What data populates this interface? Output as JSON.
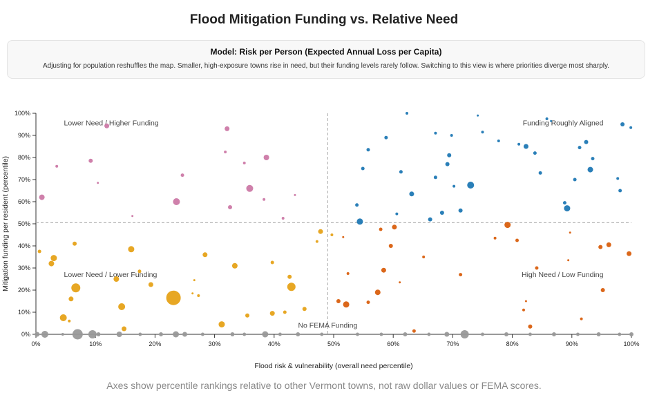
{
  "header": {
    "title": "Flood Mitigation Funding vs. Relative Need"
  },
  "model": {
    "title": "Model: Risk per Person (Expected Annual Loss per Capita)",
    "description": "Adjusting for population reshuffles the map. Smaller, high-exposure towns rise in need, but their funding levels rarely follow. Switching to this view is where priorities diverge most sharply."
  },
  "footnote": "Axes show percentile rankings relative to other Vermont towns, not raw dollar values or FEMA scores.",
  "chart_data": {
    "type": "scatter",
    "xlabel": "Flood risk & vulnerability (overall need percentile)",
    "ylabel": "Mitigation funding per resident (percentile)",
    "xlim": [
      0,
      100
    ],
    "ylim": [
      0,
      100
    ],
    "x_ticks": [
      "0%",
      "10%",
      "20%",
      "30%",
      "40%",
      "50%",
      "60%",
      "70%",
      "80%",
      "90%",
      "100%"
    ],
    "y_ticks": [
      "0%",
      "10%",
      "20%",
      "30%",
      "40%",
      "50%",
      "60%",
      "70%",
      "80%",
      "90%",
      "100%"
    ],
    "grid": false,
    "reference_lines": {
      "x": 49,
      "y": 50.5
    },
    "quadrant_labels": {
      "top_left": "Lower Need / Higher Funding",
      "top_right": "Funding Roughly Aligned",
      "bottom_left": "Lower Need / Lower Funding",
      "bottom_right": "High Need / Low Funding",
      "baseline": "No FEMA Funding"
    },
    "colors": {
      "top_left": "#cc79a7",
      "top_right": "#1f78b4",
      "bottom_left": "#e6a218",
      "bottom_right": "#d95f0e",
      "no_funding": "#999999",
      "reference": "#aaaaaa"
    },
    "series": [
      {
        "key": "top_left",
        "points": [
          {
            "x": 1,
            "y": 62,
            "s": 4
          },
          {
            "x": 3.5,
            "y": 76,
            "s": 2
          },
          {
            "x": 9.2,
            "y": 78.5,
            "s": 3
          },
          {
            "x": 10.4,
            "y": 68.5,
            "s": 1.5
          },
          {
            "x": 11.9,
            "y": 94.3,
            "s": 3.5
          },
          {
            "x": 16.2,
            "y": 53.5,
            "s": 1.5
          },
          {
            "x": 23.6,
            "y": 60,
            "s": 5
          },
          {
            "x": 24.6,
            "y": 72,
            "s": 2.5
          },
          {
            "x": 32.1,
            "y": 93,
            "s": 3.5
          },
          {
            "x": 31.8,
            "y": 82.5,
            "s": 2
          },
          {
            "x": 32.6,
            "y": 57.5,
            "s": 3
          },
          {
            "x": 35,
            "y": 77.5,
            "s": 2
          },
          {
            "x": 35.9,
            "y": 66,
            "s": 5
          },
          {
            "x": 38.7,
            "y": 80,
            "s": 4
          },
          {
            "x": 38.3,
            "y": 61,
            "s": 2
          },
          {
            "x": 43.5,
            "y": 63,
            "s": 1.5
          },
          {
            "x": 41.5,
            "y": 52.5,
            "s": 2
          }
        ]
      },
      {
        "key": "top_right",
        "points": [
          {
            "x": 53.9,
            "y": 58.5,
            "s": 2.5
          },
          {
            "x": 54.4,
            "y": 51,
            "s": 4.5
          },
          {
            "x": 54.9,
            "y": 75,
            "s": 2.5
          },
          {
            "x": 55.8,
            "y": 83.5,
            "s": 2.5
          },
          {
            "x": 58.8,
            "y": 89,
            "s": 2.5
          },
          {
            "x": 60.6,
            "y": 54.5,
            "s": 2
          },
          {
            "x": 61.3,
            "y": 73.5,
            "s": 2.5
          },
          {
            "x": 62.3,
            "y": 100,
            "s": 2
          },
          {
            "x": 63.1,
            "y": 63.5,
            "s": 3.5
          },
          {
            "x": 66.2,
            "y": 52,
            "s": 3
          },
          {
            "x": 67.1,
            "y": 71,
            "s": 2.5
          },
          {
            "x": 67.1,
            "y": 91,
            "s": 2
          },
          {
            "x": 68.2,
            "y": 55,
            "s": 3
          },
          {
            "x": 69.1,
            "y": 77,
            "s": 3
          },
          {
            "x": 69.4,
            "y": 81,
            "s": 3
          },
          {
            "x": 69.8,
            "y": 90,
            "s": 2
          },
          {
            "x": 70.2,
            "y": 67,
            "s": 2
          },
          {
            "x": 71.3,
            "y": 56,
            "s": 3
          },
          {
            "x": 73,
            "y": 67.5,
            "s": 5
          },
          {
            "x": 74.2,
            "y": 99,
            "s": 1.5
          },
          {
            "x": 75,
            "y": 91.5,
            "s": 2
          },
          {
            "x": 77.7,
            "y": 87.5,
            "s": 2
          },
          {
            "x": 81.1,
            "y": 86,
            "s": 2
          },
          {
            "x": 82.3,
            "y": 85,
            "s": 3.5
          },
          {
            "x": 83.8,
            "y": 82,
            "s": 2.5
          },
          {
            "x": 84.7,
            "y": 73,
            "s": 2.5
          },
          {
            "x": 85.8,
            "y": 97.5,
            "s": 2
          },
          {
            "x": 86.5,
            "y": 96.5,
            "s": 1.5
          },
          {
            "x": 88.8,
            "y": 59.5,
            "s": 2.5
          },
          {
            "x": 89.2,
            "y": 57,
            "s": 4.5
          },
          {
            "x": 90.5,
            "y": 70,
            "s": 2.5
          },
          {
            "x": 91.3,
            "y": 84.5,
            "s": 2.5
          },
          {
            "x": 92.4,
            "y": 87,
            "s": 3
          },
          {
            "x": 93.1,
            "y": 74.5,
            "s": 4
          },
          {
            "x": 93.5,
            "y": 79.5,
            "s": 2.5
          },
          {
            "x": 97.7,
            "y": 70.5,
            "s": 2
          },
          {
            "x": 98.1,
            "y": 65,
            "s": 2.5
          },
          {
            "x": 98.5,
            "y": 95,
            "s": 3
          },
          {
            "x": 99.9,
            "y": 93.5,
            "s": 2
          }
        ]
      },
      {
        "key": "bottom_left",
        "points": [
          {
            "x": 0.6,
            "y": 37.5,
            "s": 2.5
          },
          {
            "x": 2.6,
            "y": 32,
            "s": 4
          },
          {
            "x": 3,
            "y": 34.5,
            "s": 4.5
          },
          {
            "x": 4.6,
            "y": 7.5,
            "s": 5
          },
          {
            "x": 5.6,
            "y": 6,
            "s": 2
          },
          {
            "x": 5.9,
            "y": 16,
            "s": 3.5
          },
          {
            "x": 6.5,
            "y": 41,
            "s": 3
          },
          {
            "x": 6.7,
            "y": 21,
            "s": 6.5
          },
          {
            "x": 13.5,
            "y": 25,
            "s": 4
          },
          {
            "x": 14.4,
            "y": 12.5,
            "s": 5
          },
          {
            "x": 14.8,
            "y": 2.5,
            "s": 3.5
          },
          {
            "x": 16,
            "y": 38.5,
            "s": 4.5
          },
          {
            "x": 17.4,
            "y": 28.5,
            "s": 2.5
          },
          {
            "x": 19.3,
            "y": 22.5,
            "s": 3.5
          },
          {
            "x": 23.1,
            "y": 16.5,
            "s": 10.5
          },
          {
            "x": 26.3,
            "y": 18.5,
            "s": 1.5
          },
          {
            "x": 26.6,
            "y": 24.5,
            "s": 1.5
          },
          {
            "x": 27.3,
            "y": 17.5,
            "s": 2
          },
          {
            "x": 28.4,
            "y": 36,
            "s": 3.5
          },
          {
            "x": 31.2,
            "y": 4.5,
            "s": 4.5
          },
          {
            "x": 33.4,
            "y": 31,
            "s": 4
          },
          {
            "x": 35.5,
            "y": 8.5,
            "s": 3
          },
          {
            "x": 39.7,
            "y": 32.5,
            "s": 2.5
          },
          {
            "x": 39.7,
            "y": 9.5,
            "s": 3.5
          },
          {
            "x": 41.8,
            "y": 10,
            "s": 2.5
          },
          {
            "x": 42.6,
            "y": 26,
            "s": 3
          },
          {
            "x": 42.9,
            "y": 21.5,
            "s": 6
          },
          {
            "x": 45.1,
            "y": 11.5,
            "s": 3
          },
          {
            "x": 47.2,
            "y": 42,
            "s": 2
          },
          {
            "x": 47.8,
            "y": 46.5,
            "s": 3.5
          },
          {
            "x": 49.7,
            "y": 45,
            "s": 2
          }
        ]
      },
      {
        "key": "bottom_right",
        "points": [
          {
            "x": 50.8,
            "y": 15,
            "s": 3
          },
          {
            "x": 51.6,
            "y": 44,
            "s": 1.5
          },
          {
            "x": 52.1,
            "y": 13.5,
            "s": 4.5
          },
          {
            "x": 52.4,
            "y": 27.5,
            "s": 2
          },
          {
            "x": 55.8,
            "y": 14.5,
            "s": 2.5
          },
          {
            "x": 57.4,
            "y": 19,
            "s": 4
          },
          {
            "x": 57.9,
            "y": 47.5,
            "s": 2.5
          },
          {
            "x": 58.4,
            "y": 29,
            "s": 3.5
          },
          {
            "x": 59.6,
            "y": 40,
            "s": 3
          },
          {
            "x": 60.2,
            "y": 48.5,
            "s": 3.5
          },
          {
            "x": 61.1,
            "y": 23.5,
            "s": 1.5
          },
          {
            "x": 63.5,
            "y": 1.5,
            "s": 2.5
          },
          {
            "x": 65.1,
            "y": 35,
            "s": 2
          },
          {
            "x": 71.3,
            "y": 27,
            "s": 2.5
          },
          {
            "x": 77.1,
            "y": 43.5,
            "s": 2
          },
          {
            "x": 79.2,
            "y": 49.5,
            "s": 4.5
          },
          {
            "x": 80.8,
            "y": 42.5,
            "s": 2.5
          },
          {
            "x": 81.9,
            "y": 11,
            "s": 2
          },
          {
            "x": 82.3,
            "y": 15,
            "s": 1.5
          },
          {
            "x": 83,
            "y": 3.5,
            "s": 3
          },
          {
            "x": 84.1,
            "y": 30,
            "s": 2.5
          },
          {
            "x": 89.4,
            "y": 33.5,
            "s": 1.5
          },
          {
            "x": 89.7,
            "y": 46,
            "s": 1.5
          },
          {
            "x": 91.6,
            "y": 7,
            "s": 2
          },
          {
            "x": 94.8,
            "y": 39.5,
            "s": 3
          },
          {
            "x": 95.2,
            "y": 20,
            "s": 3
          },
          {
            "x": 96.2,
            "y": 40.5,
            "s": 3.5
          },
          {
            "x": 99.6,
            "y": 36.5,
            "s": 3.5
          }
        ]
      },
      {
        "key": "no_funding",
        "points": [
          {
            "x": 0.2,
            "y": 0,
            "s": 3.5
          },
          {
            "x": 1.5,
            "y": 0,
            "s": 5
          },
          {
            "x": 4.5,
            "y": 0,
            "s": 2
          },
          {
            "x": 7,
            "y": 0,
            "s": 7.5
          },
          {
            "x": 9.5,
            "y": 0,
            "s": 6
          },
          {
            "x": 10.5,
            "y": 0,
            "s": 3
          },
          {
            "x": 14,
            "y": 0,
            "s": 4
          },
          {
            "x": 17.5,
            "y": 0,
            "s": 2.5
          },
          {
            "x": 21,
            "y": 0,
            "s": 3
          },
          {
            "x": 23.5,
            "y": 0,
            "s": 4.5
          },
          {
            "x": 25,
            "y": 0,
            "s": 3.5
          },
          {
            "x": 28,
            "y": 0,
            "s": 2.5
          },
          {
            "x": 33,
            "y": 0,
            "s": 3
          },
          {
            "x": 35,
            "y": 0,
            "s": 2.5
          },
          {
            "x": 38.5,
            "y": 0,
            "s": 4.5
          },
          {
            "x": 41,
            "y": 0,
            "s": 2.5
          },
          {
            "x": 44,
            "y": 0,
            "s": 3
          },
          {
            "x": 48,
            "y": 0,
            "s": 2.5
          },
          {
            "x": 54,
            "y": 0,
            "s": 2.5
          },
          {
            "x": 58,
            "y": 0,
            "s": 2.5
          },
          {
            "x": 62,
            "y": 0,
            "s": 3
          },
          {
            "x": 66,
            "y": 0,
            "s": 2.5
          },
          {
            "x": 69,
            "y": 0,
            "s": 3.5
          },
          {
            "x": 72,
            "y": 0,
            "s": 6
          },
          {
            "x": 75,
            "y": 0,
            "s": 2.5
          },
          {
            "x": 79,
            "y": 0,
            "s": 3
          },
          {
            "x": 83,
            "y": 0,
            "s": 2.5
          },
          {
            "x": 87,
            "y": 0,
            "s": 3
          },
          {
            "x": 91,
            "y": 0,
            "s": 2.5
          },
          {
            "x": 94.5,
            "y": 0,
            "s": 3
          },
          {
            "x": 98,
            "y": 0,
            "s": 2.5
          },
          {
            "x": 100,
            "y": 0,
            "s": 3
          }
        ]
      }
    ]
  }
}
